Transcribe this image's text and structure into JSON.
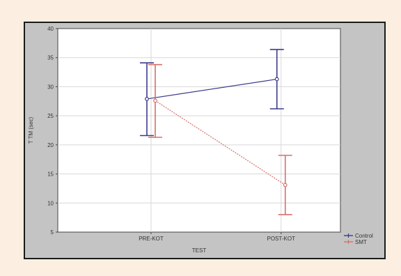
{
  "chart_data": {
    "type": "line",
    "title": "",
    "xlabel": "TEST",
    "ylabel": "T TM (sec)",
    "categories": [
      "PRE-KOT",
      "POST-KOT"
    ],
    "ylim": [
      5,
      40
    ],
    "yticks": [
      5,
      10,
      15,
      20,
      25,
      30,
      35,
      40
    ],
    "grid": true,
    "legend_position": "bottom-right",
    "series": [
      {
        "name": "Control",
        "color": "#3a3a8c",
        "values": [
          27.9,
          31.3
        ],
        "lower": [
          21.6,
          26.2
        ],
        "upper": [
          34.1,
          36.4
        ]
      },
      {
        "name": "SMT",
        "color": "#d4706a",
        "values": [
          27.6,
          13.1
        ],
        "lower": [
          21.3,
          8.0
        ],
        "upper": [
          33.8,
          18.2
        ]
      }
    ]
  }
}
